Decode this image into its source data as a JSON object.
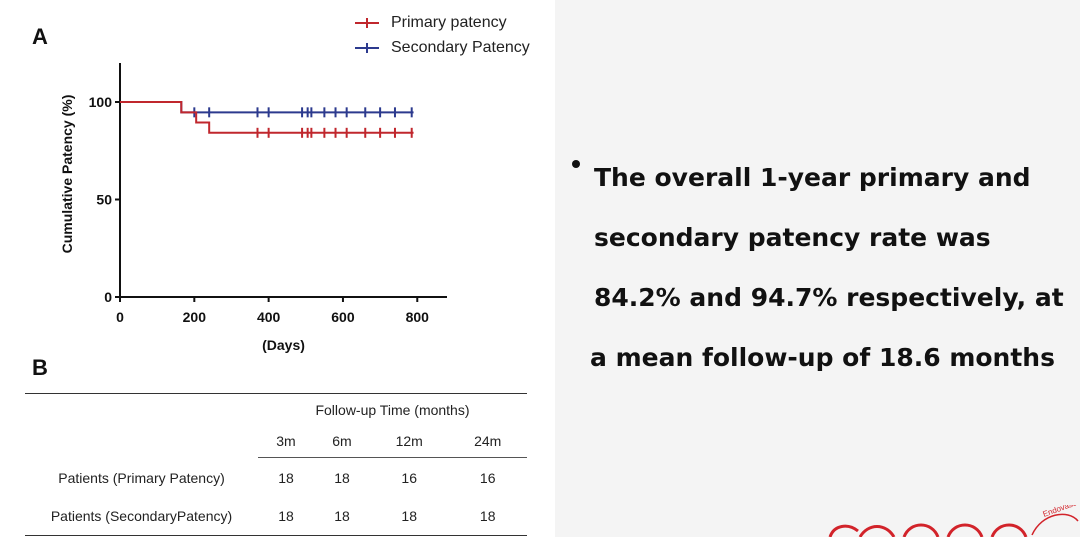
{
  "panel_a_label": "A",
  "panel_b_label": "B",
  "chart_data": {
    "type": "line",
    "step": true,
    "xlabel": "(Days)",
    "ylabel": "Cumulative Patency (%)",
    "xlim": [
      0,
      880
    ],
    "ylim": [
      0,
      120
    ],
    "xticks": [
      0,
      200,
      400,
      600,
      800
    ],
    "yticks": [
      0,
      50,
      100
    ],
    "legend_position": "top-right",
    "series": [
      {
        "name": "Primary patency",
        "color": "#c0272d",
        "x": [
          0,
          165,
          165,
          205,
          205,
          240,
          240,
          790
        ],
        "y": [
          100,
          100,
          94.7,
          94.7,
          89.5,
          89.5,
          84.2,
          84.2
        ],
        "censor_x": [
          370,
          400,
          490,
          505,
          515,
          550,
          580,
          610,
          660,
          700,
          740,
          785
        ],
        "censor_y": 84.2
      },
      {
        "name": "Secondary Patency",
        "color": "#2c3a8e",
        "x": [
          0,
          165,
          165,
          790
        ],
        "y": [
          100,
          100,
          94.7,
          94.7
        ],
        "censor_x": [
          200,
          240,
          370,
          400,
          490,
          505,
          515,
          550,
          580,
          610,
          660,
          700,
          740,
          785
        ],
        "censor_y": 94.7
      }
    ]
  },
  "table": {
    "group_header": "Follow-up Time (months)",
    "columns": [
      "3m",
      "6m",
      "12m",
      "24m"
    ],
    "rows": [
      {
        "label": "Patients (Primary Patency)",
        "values": [
          "18",
          "18",
          "16",
          "16"
        ]
      },
      {
        "label": "Patients (SecondaryPatency)",
        "values": [
          "18",
          "18",
          "18",
          "18"
        ]
      }
    ]
  },
  "summary": {
    "lines": [
      "The overall 1-year primary and",
      "secondary patency rate was",
      "84.2% and 94.7% respectively, at",
      "a mean follow-up of 18.6 months"
    ]
  },
  "logo": {
    "text": "Endovascular"
  }
}
